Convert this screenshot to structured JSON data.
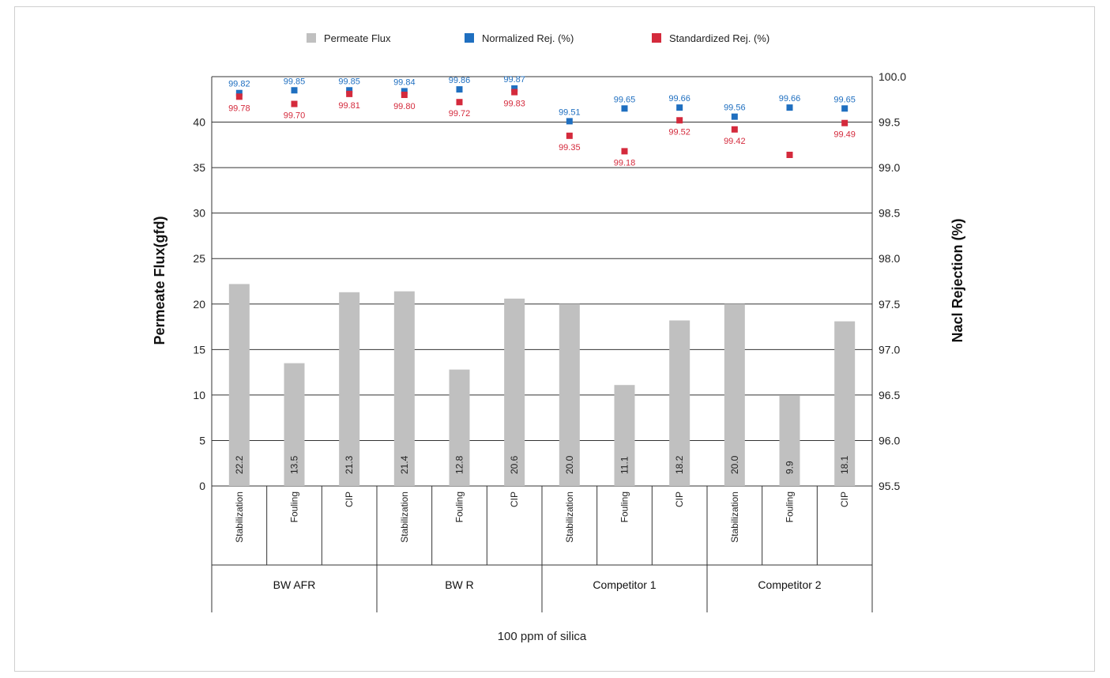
{
  "chart_data": {
    "type": "bar",
    "xlabel": "100 ppm of silica",
    "ylabel": "Permeate Flux(gfd)",
    "y2label": "Nacl Rejection (%)",
    "ylim": [
      0,
      45
    ],
    "y2lim": [
      95.5,
      100.0
    ],
    "yticks": [
      "0",
      "5",
      "10",
      "15",
      "20",
      "25",
      "30",
      "35",
      "40"
    ],
    "y2ticks": [
      "95.5",
      "96.0",
      "96.5",
      "97.0",
      "97.5",
      "98.0",
      "98.5",
      "99.0",
      "99.5",
      "100.0"
    ],
    "legend_position": "top",
    "groups": [
      "BW AFR",
      "BW R",
      "Competitor 1",
      "Competitor 2"
    ],
    "categories": [
      "Stabilization",
      "Fouling",
      "CIP",
      "Stabilization",
      "Fouling",
      "CIP",
      "Stabilization",
      "Fouling",
      "CIP",
      "Stabilization",
      "Fouling",
      "CIP"
    ],
    "series": [
      {
        "name": "Permeate Flux",
        "axis": "left",
        "color": "#c0c0c0",
        "values": [
          22.2,
          13.5,
          21.3,
          21.4,
          12.8,
          20.6,
          20.0,
          11.1,
          18.2,
          20.0,
          9.9,
          18.1
        ],
        "labels": [
          "22.2",
          "13.5",
          "21.3",
          "21.4",
          "12.8",
          "20.6",
          "20.0",
          "11.1",
          "18.2",
          "20.0",
          "9.9",
          "18.1"
        ]
      },
      {
        "name": "Normalized Rej. (%)",
        "axis": "right",
        "color": "#1f6fc0",
        "values": [
          99.82,
          99.85,
          99.85,
          99.84,
          99.86,
          99.87,
          99.51,
          99.65,
          99.66,
          99.56,
          99.66,
          99.65
        ],
        "labels": [
          "99.82",
          "99.85",
          "99.85",
          "99.84",
          "99.86",
          "99.87",
          "99.51",
          "99.65",
          "99.66",
          "99.56",
          "99.66",
          "99.65"
        ]
      },
      {
        "name": "Standardized Rej. (%)",
        "axis": "right",
        "color": "#d42a3c",
        "values": [
          99.78,
          99.7,
          99.81,
          99.8,
          99.72,
          99.83,
          99.35,
          99.18,
          99.52,
          99.42,
          99.14,
          99.49
        ],
        "labels": [
          "99.78",
          "99.70",
          "99.81",
          "99.80",
          "99.72",
          "99.83",
          "99.35",
          "99.18",
          "99.52",
          "99.42",
          "",
          "99.49"
        ]
      }
    ]
  }
}
